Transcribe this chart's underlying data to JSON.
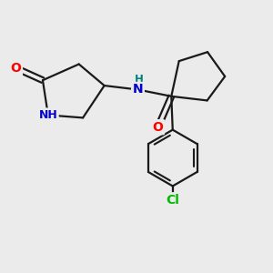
{
  "background_color": "#ebebeb",
  "bond_color": "#1a1a1a",
  "bond_width": 1.6,
  "atom_colors": {
    "O": "#ff0000",
    "N": "#0000cc",
    "Cl": "#00bb00",
    "H_label": "#008080",
    "C": "#1a1a1a"
  },
  "figsize": [
    3.0,
    3.0
  ],
  "dpi": 100
}
